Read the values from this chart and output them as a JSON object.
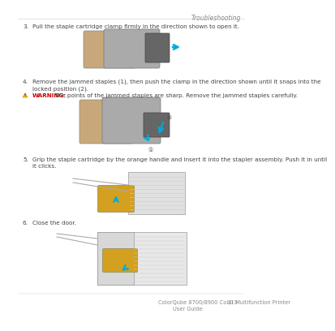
{
  "bg_color": "#ffffff",
  "header_text": "Troubleshooting",
  "header_fontsize": 5.5,
  "header_color": "#888888",
  "step3_num": "3.",
  "step3_text": "Pull the staple cartridge clamp firmly in the direction shown to open it.",
  "step4_num": "4.",
  "step4_text": "Remove the jammed staples (1), then push the clamp in the direction shown until it snaps into the\nlocked position (2).",
  "warning_text": "WARNING:",
  "warning_body": " The points of the jammed staples are sharp. Remove the jammed staples carefully.",
  "step5_num": "5.",
  "step5_text": "Grip the staple cartridge by the orange handle and insert it into the stapler assembly. Push it in until\nit clicks.",
  "step6_num": "6.",
  "step6_text": "Close the door.",
  "footer_main": "ColorQube 8700/8900 Color Multifunction Printer",
  "footer_num": "213",
  "footer_sub": "User Guide",
  "text_color": "#444444",
  "body_fontsize": 5.2,
  "footer_fontsize": 4.8,
  "warning_color": "#cc0000",
  "warn_triangle_color": "#cc8800"
}
